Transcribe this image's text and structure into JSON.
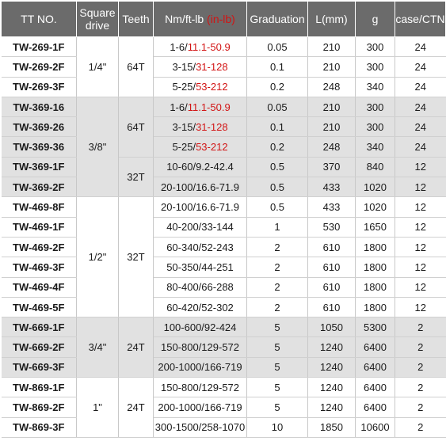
{
  "headers": {
    "model": "TT NO.",
    "drive": "Square drive",
    "teeth": "Teeth",
    "range": "Nm/ft-lb",
    "range_unit": "(in-lb)",
    "graduation": "Graduation",
    "length": "L(mm)",
    "weight": "g",
    "case": "case/CTN"
  },
  "groups": [
    {
      "drive": "1/4\"",
      "shade": "white",
      "teeth_groups": [
        {
          "teeth": "64T",
          "rows": [
            {
              "model": "TW-269-1F",
              "range_a": "1-6/",
              "range_b": "11.1-50.9",
              "graduation": "0.05",
              "length": "210",
              "weight": "300",
              "case": "24"
            },
            {
              "model": "TW-269-2F",
              "range_a": "3-15/",
              "range_b": "31-128",
              "graduation": "0.1",
              "length": "210",
              "weight": "300",
              "case": "24"
            },
            {
              "model": "TW-269-3F",
              "range_a": "5-25/",
              "range_b": "53-212",
              "graduation": "0.2",
              "length": "248",
              "weight": "340",
              "case": "24"
            }
          ]
        }
      ]
    },
    {
      "drive": "3/8\"",
      "shade": "grey",
      "teeth_groups": [
        {
          "teeth": "64T",
          "rows": [
            {
              "model": "TW-369-16",
              "range_a": "1-6/",
              "range_b": "11.1-50.9",
              "graduation": "0.05",
              "length": "210",
              "weight": "300",
              "case": "24"
            },
            {
              "model": "TW-369-26",
              "range_a": "3-15/",
              "range_b": "31-128",
              "graduation": "0.1",
              "length": "210",
              "weight": "300",
              "case": "24"
            },
            {
              "model": "TW-369-36",
              "range_a": "5-25/",
              "range_b": "53-212",
              "graduation": "0.2",
              "length": "248",
              "weight": "340",
              "case": "24"
            }
          ]
        },
        {
          "teeth": "32T",
          "rows": [
            {
              "model": "TW-369-1F",
              "range_a": "10-60/9.2-42.4",
              "range_b": "",
              "graduation": "0.5",
              "length": "370",
              "weight": "840",
              "case": "12"
            },
            {
              "model": "TW-369-2F",
              "range_a": "20-100/16.6-71.9",
              "range_b": "",
              "graduation": "0.5",
              "length": "433",
              "weight": "1020",
              "case": "12"
            }
          ]
        }
      ]
    },
    {
      "drive": "1/2\"",
      "shade": "white",
      "teeth_groups": [
        {
          "teeth": "32T",
          "rows": [
            {
              "model": "TW-469-8F",
              "range_a": "20-100/16.6-71.9",
              "range_b": "",
              "graduation": "0.5",
              "length": "433",
              "weight": "1020",
              "case": "12"
            },
            {
              "model": "TW-469-1F",
              "range_a": "40-200/33-144",
              "range_b": "",
              "graduation": "1",
              "length": "530",
              "weight": "1650",
              "case": "12"
            },
            {
              "model": "TW-469-2F",
              "range_a": "60-340/52-243",
              "range_b": "",
              "graduation": "2",
              "length": "610",
              "weight": "1800",
              "case": "12"
            },
            {
              "model": "TW-469-3F",
              "range_a": "50-350/44-251",
              "range_b": "",
              "graduation": "2",
              "length": "610",
              "weight": "1800",
              "case": "12"
            },
            {
              "model": "TW-469-4F",
              "range_a": "80-400/66-288",
              "range_b": "",
              "graduation": "2",
              "length": "610",
              "weight": "1800",
              "case": "12"
            },
            {
              "model": "TW-469-5F",
              "range_a": "60-420/52-302",
              "range_b": "",
              "graduation": "2",
              "length": "610",
              "weight": "1800",
              "case": "12"
            }
          ]
        }
      ]
    },
    {
      "drive": "3/4\"",
      "shade": "grey",
      "teeth_groups": [
        {
          "teeth": "24T",
          "rows": [
            {
              "model": "TW-669-1F",
              "range_a": "100-600/92-424",
              "range_b": "",
              "graduation": "5",
              "length": "1050",
              "weight": "5300",
              "case": "2"
            },
            {
              "model": "TW-669-2F",
              "range_a": "150-800/129-572",
              "range_b": "",
              "graduation": "5",
              "length": "1240",
              "weight": "6400",
              "case": "2"
            },
            {
              "model": "TW-669-3F",
              "range_a": "200-1000/166-719",
              "range_b": "",
              "graduation": "5",
              "length": "1240",
              "weight": "6400",
              "case": "2"
            }
          ]
        }
      ]
    },
    {
      "drive": "1\"",
      "shade": "white",
      "teeth_groups": [
        {
          "teeth": "24T",
          "rows": [
            {
              "model": "TW-869-1F",
              "range_a": "150-800/129-572",
              "range_b": "",
              "graduation": "5",
              "length": "1240",
              "weight": "6400",
              "case": "2"
            },
            {
              "model": "TW-869-2F",
              "range_a": "200-1000/166-719",
              "range_b": "",
              "graduation": "5",
              "length": "1240",
              "weight": "6400",
              "case": "2"
            },
            {
              "model": "TW-869-3F",
              "range_a": "300-1500/258-1070",
              "range_b": "",
              "graduation": "10",
              "length": "1850",
              "weight": "10600",
              "case": "2"
            }
          ]
        }
      ]
    }
  ]
}
